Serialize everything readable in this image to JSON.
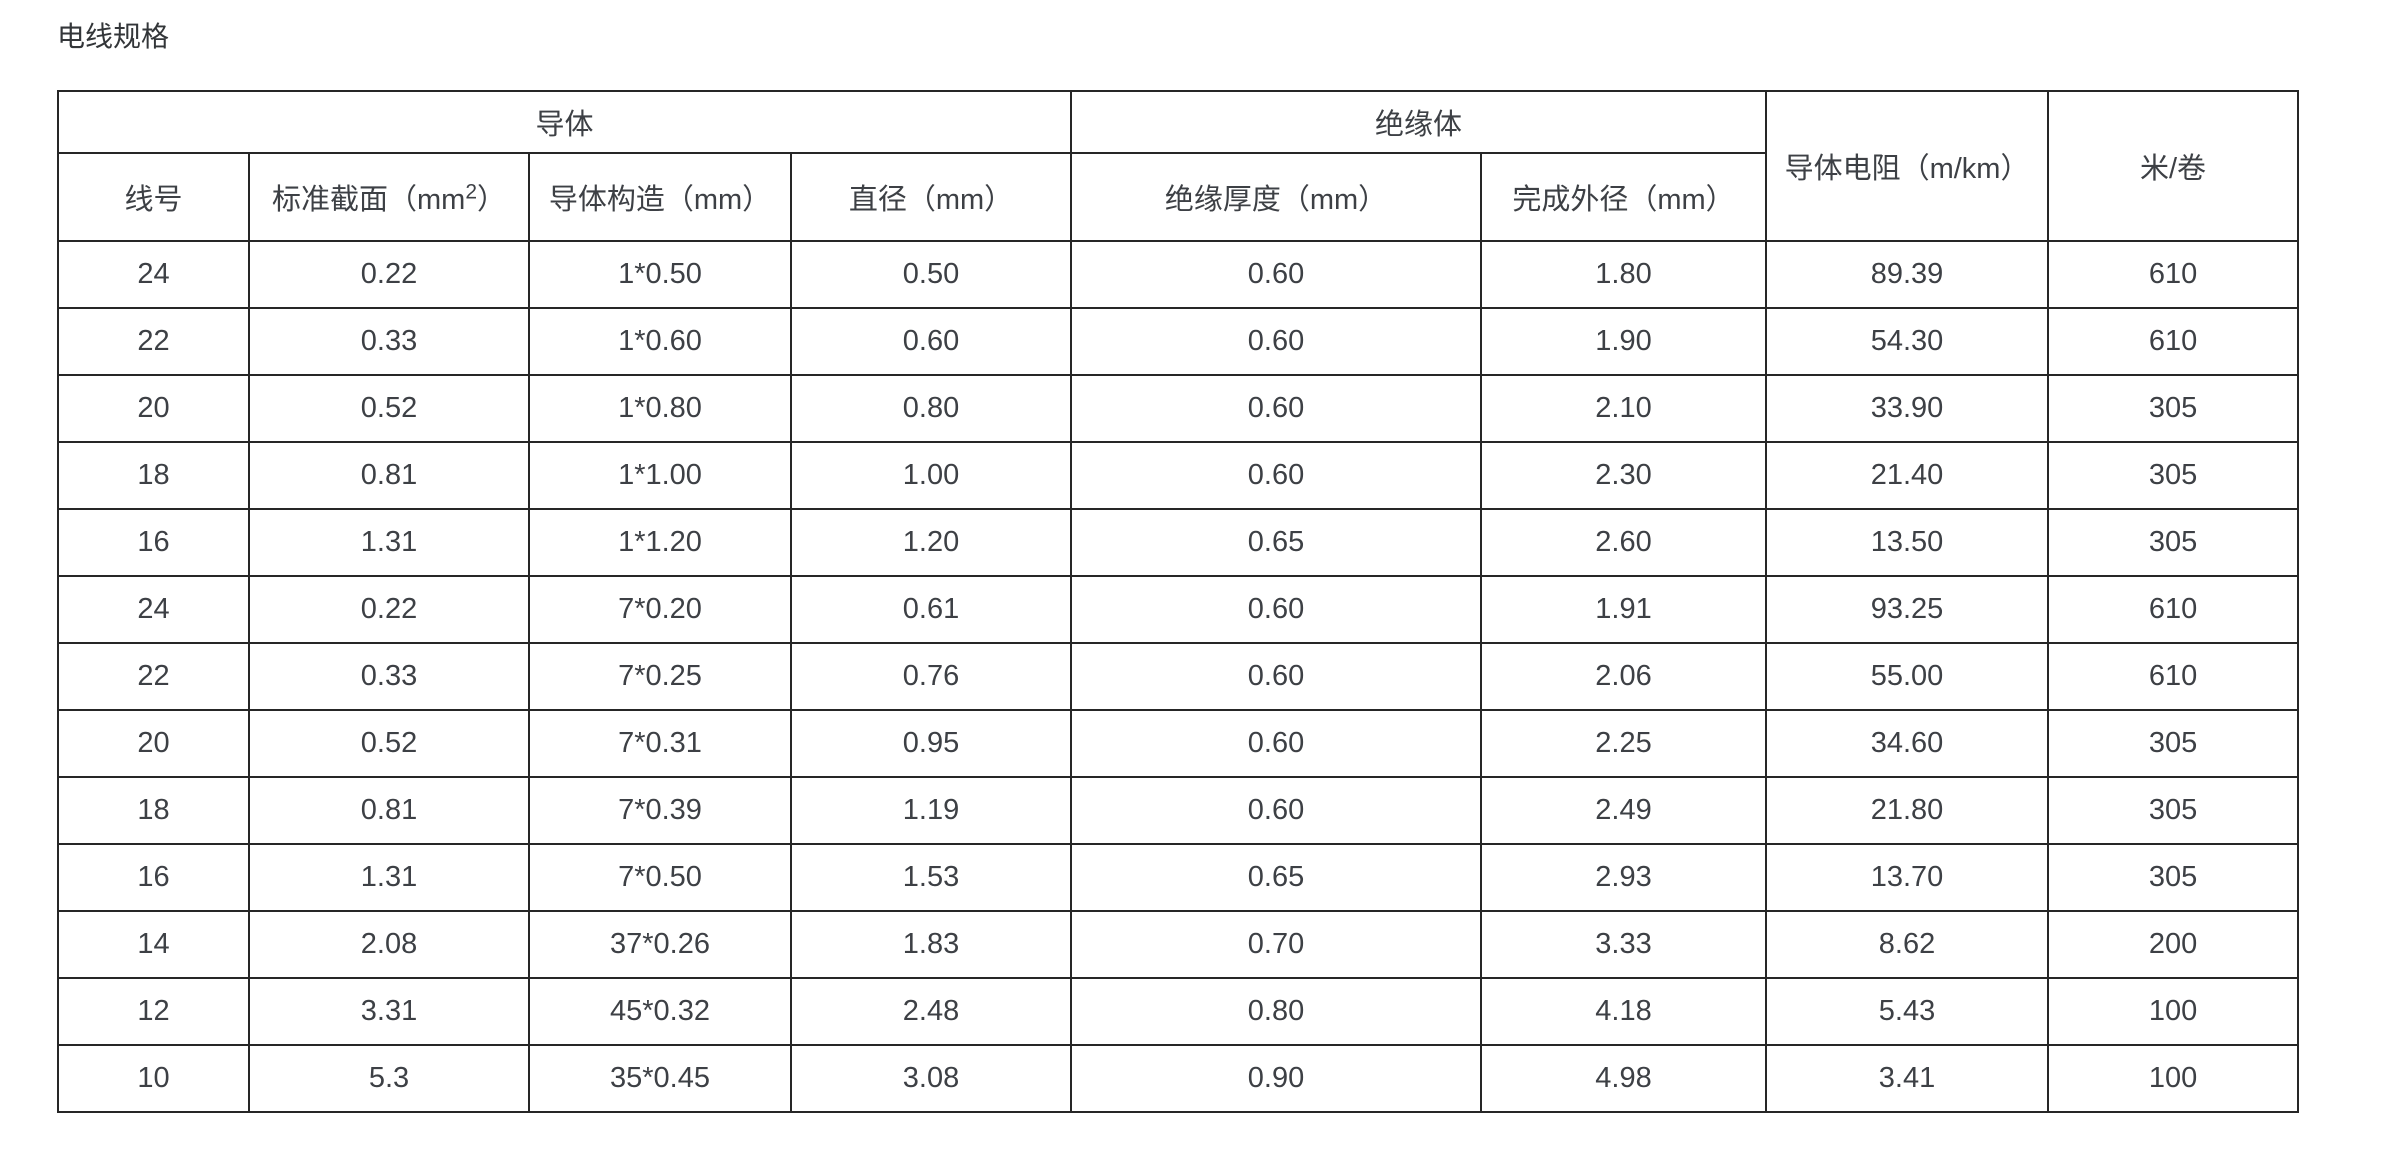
{
  "page": {
    "title": "电线规格"
  },
  "table": {
    "group_headers": {
      "conductor": "导体",
      "insulator": "绝缘体",
      "resistance": "导体电阻（m/km）",
      "meters_per_roll": "米/卷"
    },
    "sub_headers": {
      "wire_number": "线号",
      "cross_section_prefix": "标准截面（mm",
      "cross_section_sup": "2",
      "cross_section_suffix": "）",
      "construction": "导体构造（mm）",
      "diameter": "直径（mm）",
      "insulation_thickness": "绝缘厚度（mm）",
      "finished_od": "完成外径（mm）"
    },
    "rows": [
      [
        "24",
        "0.22",
        "1*0.50",
        "0.50",
        "0.60",
        "1.80",
        "89.39",
        "610"
      ],
      [
        "22",
        "0.33",
        "1*0.60",
        "0.60",
        "0.60",
        "1.90",
        "54.30",
        "610"
      ],
      [
        "20",
        "0.52",
        "1*0.80",
        "0.80",
        "0.60",
        "2.10",
        "33.90",
        "305"
      ],
      [
        "18",
        "0.81",
        "1*1.00",
        "1.00",
        "0.60",
        "2.30",
        "21.40",
        "305"
      ],
      [
        "16",
        "1.31",
        "1*1.20",
        "1.20",
        "0.65",
        "2.60",
        "13.50",
        "305"
      ],
      [
        "24",
        "0.22",
        "7*0.20",
        "0.61",
        "0.60",
        "1.91",
        "93.25",
        "610"
      ],
      [
        "22",
        "0.33",
        "7*0.25",
        "0.76",
        "0.60",
        "2.06",
        "55.00",
        "610"
      ],
      [
        "20",
        "0.52",
        "7*0.31",
        "0.95",
        "0.60",
        "2.25",
        "34.60",
        "305"
      ],
      [
        "18",
        "0.81",
        "7*0.39",
        "1.19",
        "0.60",
        "2.49",
        "21.80",
        "305"
      ],
      [
        "16",
        "1.31",
        "7*0.50",
        "1.53",
        "0.65",
        "2.93",
        "13.70",
        "305"
      ],
      [
        "14",
        "2.08",
        "37*0.26",
        "1.83",
        "0.70",
        "3.33",
        "8.62",
        "200"
      ],
      [
        "12",
        "3.31",
        "45*0.32",
        "2.48",
        "0.80",
        "4.18",
        "5.43",
        "100"
      ],
      [
        "10",
        "5.3",
        "35*0.45",
        "3.08",
        "0.90",
        "4.98",
        "3.41",
        "100"
      ]
    ]
  }
}
